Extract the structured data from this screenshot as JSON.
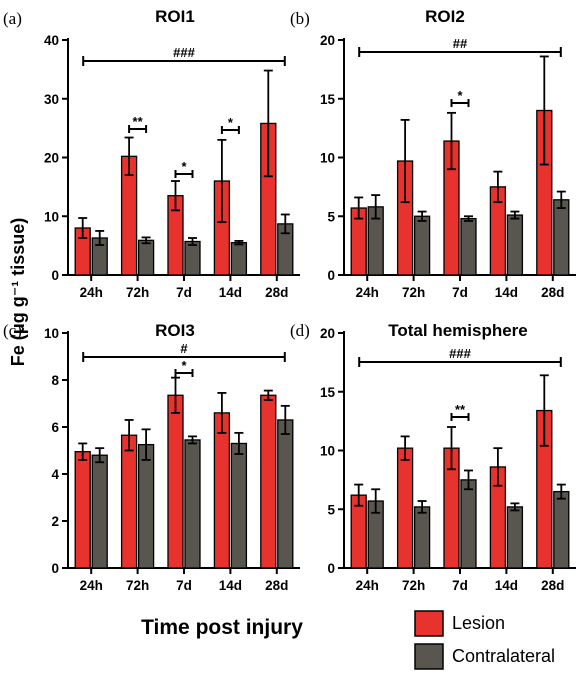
{
  "figure": {
    "ylabel": "Fe (μg g⁻¹ tissue)",
    "xlabel": "Time post injury",
    "legend": [
      "Lesion",
      "Contralateral"
    ]
  },
  "colors": {
    "lesion": "#e8322e",
    "contralateral": "#58564f"
  },
  "chart_data": [
    {
      "type": "bar",
      "panel": "(a)",
      "title": "ROI1",
      "categories": [
        "24h",
        "72h",
        "7d",
        "14d",
        "28d"
      ],
      "ylim": [
        0,
        40
      ],
      "yticks": [
        0,
        10,
        20,
        30,
        40
      ],
      "series": [
        {
          "name": "Lesion",
          "values": [
            8.0,
            20.2,
            13.5,
            16.0,
            25.8
          ],
          "errors": [
            1.7,
            3.2,
            2.5,
            7.0,
            9.0
          ]
        },
        {
          "name": "Contralateral",
          "values": [
            6.3,
            5.9,
            5.7,
            5.5,
            8.7
          ],
          "errors": [
            1.2,
            0.5,
            0.6,
            0.3,
            1.6
          ]
        }
      ],
      "overall": "###",
      "pairs": [
        {
          "category": "72h",
          "label": "**"
        },
        {
          "category": "7d",
          "label": "*"
        },
        {
          "category": "14d",
          "label": "*"
        }
      ]
    },
    {
      "type": "bar",
      "panel": "(b)",
      "title": "ROI2",
      "categories": [
        "24h",
        "72h",
        "7d",
        "14d",
        "28d"
      ],
      "ylim": [
        0,
        20
      ],
      "yticks": [
        0,
        5,
        10,
        15,
        20
      ],
      "series": [
        {
          "name": "Lesion",
          "values": [
            5.7,
            9.7,
            11.4,
            7.5,
            14.0
          ],
          "errors": [
            0.9,
            3.5,
            2.4,
            1.3,
            4.6
          ]
        },
        {
          "name": "Contralateral",
          "values": [
            5.8,
            5.0,
            4.8,
            5.1,
            6.4
          ],
          "errors": [
            1.0,
            0.4,
            0.2,
            0.3,
            0.7
          ]
        }
      ],
      "overall": "##",
      "pairs": [
        {
          "category": "7d",
          "label": "*"
        }
      ]
    },
    {
      "type": "bar",
      "panel": "(c)",
      "title": "ROI3",
      "categories": [
        "24h",
        "72h",
        "7d",
        "14d",
        "28d"
      ],
      "ylim": [
        0,
        10
      ],
      "yticks": [
        0,
        2,
        4,
        6,
        8,
        10
      ],
      "series": [
        {
          "name": "Lesion",
          "values": [
            4.95,
            5.65,
            7.35,
            6.6,
            7.35
          ],
          "errors": [
            0.35,
            0.65,
            0.75,
            0.85,
            0.2
          ]
        },
        {
          "name": "Contralateral",
          "values": [
            4.8,
            5.25,
            5.45,
            5.3,
            6.3
          ],
          "errors": [
            0.3,
            0.65,
            0.15,
            0.45,
            0.6
          ]
        }
      ],
      "overall": "#",
      "pairs": [
        {
          "category": "7d",
          "label": "*"
        }
      ]
    },
    {
      "type": "bar",
      "panel": "(d)",
      "title": "Total hemisphere",
      "categories": [
        "24h",
        "72h",
        "7d",
        "14d",
        "28d"
      ],
      "ylim": [
        0,
        20
      ],
      "yticks": [
        0,
        5,
        10,
        15,
        20
      ],
      "series": [
        {
          "name": "Lesion",
          "values": [
            6.2,
            10.2,
            10.2,
            8.6,
            13.4
          ],
          "errors": [
            0.9,
            1.0,
            1.8,
            1.6,
            3.0
          ]
        },
        {
          "name": "Contralateral",
          "values": [
            5.7,
            5.2,
            7.5,
            5.2,
            6.5
          ],
          "errors": [
            1.0,
            0.5,
            0.8,
            0.3,
            0.6
          ]
        }
      ],
      "overall": "###",
      "pairs": [
        {
          "category": "7d",
          "label": "**"
        }
      ]
    }
  ]
}
